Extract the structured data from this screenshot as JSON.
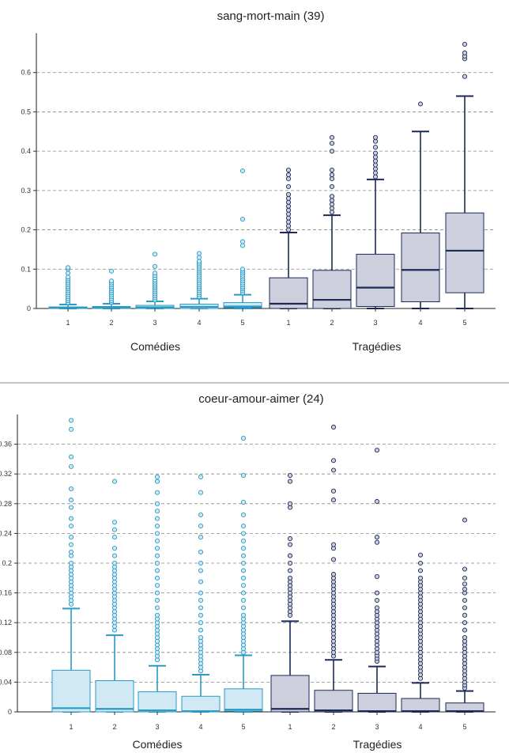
{
  "colors": {
    "comedies": "#2b9ac4",
    "comedies_fill": "#d0e9f4",
    "tragedies": "#1b2a57",
    "tragedies_fill": "#cdcfdd",
    "grid": "#888888"
  },
  "chart_data": [
    {
      "type": "box",
      "title": "sang-mort-main (39)",
      "ylim": [
        0,
        0.7
      ],
      "yticks": [
        "0",
        "0.1",
        "0.2",
        "0.3",
        "0.4",
        "0.5",
        "0.6"
      ],
      "grid": true,
      "groups": [
        {
          "name": "Comédies",
          "color_key": "comedies",
          "boxes": [
            {
              "label": "1",
              "q1": 0,
              "median": 0.002,
              "q3": 0.004,
              "wlow": 0,
              "whigh": 0.01,
              "outliers": [
                0.015,
                0.02,
                0.025,
                0.03,
                0.035,
                0.04,
                0.045,
                0.05,
                0.055,
                0.06,
                0.065,
                0.07,
                0.075,
                0.08,
                0.09,
                0.1,
                0.104
              ]
            },
            {
              "label": "2",
              "q1": 0,
              "median": 0.002,
              "q3": 0.005,
              "wlow": 0,
              "whigh": 0.012,
              "outliers": [
                0.016,
                0.02,
                0.025,
                0.03,
                0.035,
                0.04,
                0.045,
                0.05,
                0.055,
                0.06,
                0.065,
                0.07,
                0.095
              ]
            },
            {
              "label": "3",
              "q1": 0,
              "median": 0.003,
              "q3": 0.008,
              "wlow": 0,
              "whigh": 0.018,
              "outliers": [
                0.022,
                0.027,
                0.032,
                0.037,
                0.042,
                0.047,
                0.052,
                0.057,
                0.062,
                0.067,
                0.072,
                0.078,
                0.084,
                0.09,
                0.107,
                0.138
              ]
            },
            {
              "label": "4",
              "q1": 0,
              "median": 0.004,
              "q3": 0.011,
              "wlow": 0,
              "whigh": 0.025,
              "outliers": [
                0.03,
                0.035,
                0.04,
                0.045,
                0.05,
                0.055,
                0.06,
                0.065,
                0.07,
                0.075,
                0.08,
                0.085,
                0.09,
                0.095,
                0.1,
                0.105,
                0.11,
                0.115,
                0.12,
                0.13,
                0.14
              ]
            },
            {
              "label": "5",
              "q1": 0.002,
              "median": 0.005,
              "q3": 0.015,
              "wlow": 0,
              "whigh": 0.035,
              "outliers": [
                0.04,
                0.045,
                0.05,
                0.055,
                0.06,
                0.065,
                0.07,
                0.075,
                0.08,
                0.085,
                0.09,
                0.095,
                0.1,
                0.16,
                0.17,
                0.227,
                0.35
              ]
            }
          ]
        },
        {
          "name": "Tragédies",
          "color_key": "tragedies",
          "boxes": [
            {
              "label": "1",
              "q1": 0,
              "median": 0.012,
              "q3": 0.078,
              "wlow": 0,
              "whigh": 0.193,
              "outliers": [
                0.2,
                0.21,
                0.22,
                0.23,
                0.24,
                0.25,
                0.26,
                0.27,
                0.28,
                0.29,
                0.31,
                0.33,
                0.34,
                0.352
              ]
            },
            {
              "label": "2",
              "q1": 0,
              "median": 0.022,
              "q3": 0.097,
              "wlow": 0,
              "whigh": 0.237,
              "outliers": [
                0.245,
                0.255,
                0.265,
                0.275,
                0.285,
                0.31,
                0.33,
                0.34,
                0.352,
                0.4,
                0.42,
                0.435
              ]
            },
            {
              "label": "3",
              "q1": 0.005,
              "median": 0.053,
              "q3": 0.138,
              "wlow": 0,
              "whigh": 0.328,
              "outliers": [
                0.335,
                0.345,
                0.355,
                0.365,
                0.375,
                0.385,
                0.395,
                0.41,
                0.425,
                0.435
              ]
            },
            {
              "label": "4",
              "q1": 0.017,
              "median": 0.098,
              "q3": 0.192,
              "wlow": 0,
              "whigh": 0.45,
              "outliers": [
                0.52
              ]
            },
            {
              "label": "5",
              "q1": 0.04,
              "median": 0.147,
              "q3": 0.243,
              "wlow": 0,
              "whigh": 0.54,
              "outliers": [
                0.59,
                0.635,
                0.642,
                0.65,
                0.672
              ]
            }
          ]
        }
      ]
    },
    {
      "type": "box",
      "title": "coeur-amour-aimer (24)",
      "ylim": [
        0,
        0.4
      ],
      "yticks": [
        "0",
        "0.04",
        "0.08",
        "0.12",
        "0.16",
        "0.2",
        "0.24",
        "0.28",
        "0.32",
        "0.36"
      ],
      "grid": true,
      "groups": [
        {
          "name": "Comédies",
          "color_key": "comedies",
          "boxes": [
            {
              "label": "1",
              "q1": 0,
              "median": 0.005,
              "q3": 0.056,
              "wlow": 0,
              "whigh": 0.139,
              "outliers": [
                0.145,
                0.15,
                0.155,
                0.16,
                0.165,
                0.17,
                0.175,
                0.18,
                0.185,
                0.19,
                0.195,
                0.2,
                0.21,
                0.215,
                0.225,
                0.235,
                0.25,
                0.26,
                0.275,
                0.285,
                0.3,
                0.33,
                0.343,
                0.38,
                0.392
              ]
            },
            {
              "label": "2",
              "q1": 0,
              "median": 0.004,
              "q3": 0.042,
              "wlow": 0,
              "whigh": 0.103,
              "outliers": [
                0.11,
                0.115,
                0.12,
                0.125,
                0.13,
                0.135,
                0.14,
                0.145,
                0.15,
                0.155,
                0.16,
                0.165,
                0.17,
                0.175,
                0.18,
                0.185,
                0.19,
                0.195,
                0.2,
                0.21,
                0.22,
                0.235,
                0.245,
                0.255,
                0.31
              ]
            },
            {
              "label": "3",
              "q1": 0,
              "median": 0.002,
              "q3": 0.027,
              "wlow": 0,
              "whigh": 0.062,
              "outliers": [
                0.07,
                0.075,
                0.08,
                0.085,
                0.09,
                0.095,
                0.1,
                0.105,
                0.11,
                0.115,
                0.12,
                0.125,
                0.13,
                0.14,
                0.15,
                0.16,
                0.17,
                0.18,
                0.19,
                0.2,
                0.21,
                0.22,
                0.23,
                0.24,
                0.25,
                0.26,
                0.27,
                0.28,
                0.295,
                0.31,
                0.316
              ]
            },
            {
              "label": "4",
              "q1": 0,
              "median": 0.001,
              "q3": 0.021,
              "wlow": 0,
              "whigh": 0.05,
              "outliers": [
                0.055,
                0.06,
                0.065,
                0.07,
                0.075,
                0.08,
                0.085,
                0.09,
                0.095,
                0.1,
                0.11,
                0.12,
                0.13,
                0.14,
                0.15,
                0.16,
                0.175,
                0.19,
                0.2,
                0.215,
                0.235,
                0.25,
                0.265,
                0.295,
                0.316
              ]
            },
            {
              "label": "5",
              "q1": 0.001,
              "median": 0.003,
              "q3": 0.031,
              "wlow": 0,
              "whigh": 0.076,
              "outliers": [
                0.08,
                0.085,
                0.09,
                0.095,
                0.1,
                0.105,
                0.11,
                0.115,
                0.12,
                0.125,
                0.13,
                0.14,
                0.15,
                0.16,
                0.17,
                0.18,
                0.19,
                0.2,
                0.21,
                0.22,
                0.23,
                0.24,
                0.25,
                0.265,
                0.282,
                0.318,
                0.368
              ]
            }
          ]
        },
        {
          "name": "Tragédies",
          "color_key": "tragedies",
          "boxes": [
            {
              "label": "1",
              "q1": 0,
              "median": 0.004,
              "q3": 0.049,
              "wlow": 0,
              "whigh": 0.122,
              "outliers": [
                0.13,
                0.135,
                0.14,
                0.145,
                0.15,
                0.155,
                0.16,
                0.165,
                0.17,
                0.175,
                0.18,
                0.19,
                0.2,
                0.21,
                0.225,
                0.233,
                0.275,
                0.28,
                0.31,
                0.318
              ]
            },
            {
              "label": "2",
              "q1": 0,
              "median": 0.002,
              "q3": 0.029,
              "wlow": 0,
              "whigh": 0.07,
              "outliers": [
                0.075,
                0.08,
                0.085,
                0.09,
                0.095,
                0.1,
                0.105,
                0.11,
                0.115,
                0.12,
                0.125,
                0.13,
                0.135,
                0.14,
                0.145,
                0.15,
                0.155,
                0.16,
                0.165,
                0.17,
                0.175,
                0.18,
                0.185,
                0.205,
                0.22,
                0.225,
                0.285,
                0.297,
                0.325,
                0.338,
                0.383
              ]
            },
            {
              "label": "3",
              "q1": 0,
              "median": 0.001,
              "q3": 0.025,
              "wlow": 0,
              "whigh": 0.061,
              "outliers": [
                0.068,
                0.072,
                0.076,
                0.08,
                0.085,
                0.09,
                0.095,
                0.1,
                0.105,
                0.11,
                0.115,
                0.12,
                0.125,
                0.13,
                0.135,
                0.14,
                0.15,
                0.16,
                0.182,
                0.228,
                0.235,
                0.283,
                0.352
              ]
            },
            {
              "label": "4",
              "q1": 0,
              "median": 0.001,
              "q3": 0.018,
              "wlow": 0,
              "whigh": 0.039,
              "outliers": [
                0.045,
                0.05,
                0.055,
                0.06,
                0.065,
                0.07,
                0.075,
                0.08,
                0.085,
                0.09,
                0.095,
                0.1,
                0.105,
                0.11,
                0.115,
                0.12,
                0.125,
                0.13,
                0.135,
                0.14,
                0.145,
                0.15,
                0.155,
                0.16,
                0.165,
                0.17,
                0.175,
                0.18,
                0.19,
                0.2,
                0.211
              ]
            },
            {
              "label": "5",
              "q1": 0,
              "median": 0.001,
              "q3": 0.012,
              "wlow": 0,
              "whigh": 0.028,
              "outliers": [
                0.032,
                0.036,
                0.04,
                0.045,
                0.05,
                0.055,
                0.06,
                0.065,
                0.07,
                0.075,
                0.08,
                0.085,
                0.09,
                0.095,
                0.1,
                0.11,
                0.12,
                0.13,
                0.14,
                0.15,
                0.16,
                0.165,
                0.172,
                0.18,
                0.192,
                0.258
              ]
            }
          ]
        }
      ]
    }
  ]
}
